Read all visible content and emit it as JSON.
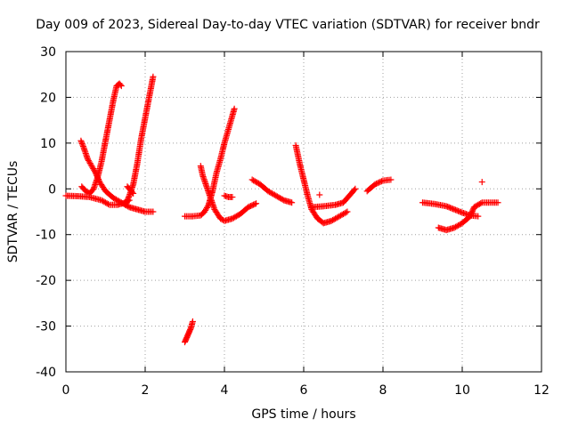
{
  "chart_data": {
    "type": "scatter",
    "title": "Day 009 of 2023, Sidereal Day-to-day VTEC variation (SDTVAR) for receiver bndr",
    "xlabel": "GPS time / hours",
    "ylabel": "SDTVAR / TECUs",
    "xlim": [
      0,
      12
    ],
    "ylim": [
      -40,
      30
    ],
    "xticks": [
      0,
      2,
      4,
      6,
      8,
      10,
      12
    ],
    "yticks": [
      -40,
      -30,
      -20,
      -10,
      0,
      10,
      20,
      30
    ],
    "grid": true,
    "marker": "+",
    "marker_color": "#ff0000",
    "segments": [
      {
        "points": [
          [
            0.0,
            -1.5
          ],
          [
            0.3,
            -1.6
          ],
          [
            0.6,
            -1.8
          ],
          [
            0.9,
            -2.5
          ],
          [
            1.1,
            -3.5
          ],
          [
            1.3,
            -3.5
          ],
          [
            1.5,
            -3.0
          ],
          [
            1.6,
            -2.5
          ]
        ]
      },
      {
        "points": [
          [
            0.38,
            10.5
          ],
          [
            0.45,
            9.0
          ],
          [
            0.55,
            6.5
          ],
          [
            0.65,
            5.0
          ],
          [
            0.75,
            3.5
          ],
          [
            0.85,
            1.5
          ],
          [
            1.0,
            -0.5
          ],
          [
            1.2,
            -2.0
          ],
          [
            1.4,
            -3.0
          ],
          [
            1.6,
            -4.0
          ],
          [
            1.8,
            -4.5
          ],
          [
            2.0,
            -5.0
          ],
          [
            2.2,
            -5.0
          ]
        ]
      },
      {
        "points": [
          [
            0.4,
            0.5
          ],
          [
            0.5,
            -0.5
          ],
          [
            0.6,
            -1.0
          ],
          [
            0.7,
            0.0
          ],
          [
            0.8,
            2.5
          ],
          [
            0.9,
            6.0
          ],
          [
            1.0,
            10.5
          ],
          [
            1.1,
            15.0
          ],
          [
            1.2,
            19.5
          ],
          [
            1.28,
            22.5
          ],
          [
            1.35,
            23.0
          ],
          [
            1.4,
            22.5
          ]
        ]
      },
      {
        "points": [
          [
            1.5,
            -3.5
          ],
          [
            1.6,
            -1.5
          ],
          [
            1.7,
            1.0
          ],
          [
            1.8,
            5.5
          ],
          [
            1.9,
            11.0
          ],
          [
            2.0,
            15.5
          ],
          [
            2.1,
            20.0
          ],
          [
            2.2,
            24.5
          ]
        ]
      },
      {
        "points": [
          [
            1.55,
            0.5
          ],
          [
            1.7,
            -1.0
          ]
        ]
      },
      {
        "points": [
          [
            3.0,
            -6.0
          ],
          [
            3.2,
            -6.0
          ],
          [
            3.4,
            -5.8
          ],
          [
            3.5,
            -5.0
          ],
          [
            3.6,
            -3.5
          ],
          [
            3.65,
            -2.0
          ],
          [
            3.7,
            -0.5
          ],
          [
            3.75,
            1.5
          ],
          [
            3.8,
            3.5
          ],
          [
            3.9,
            6.5
          ],
          [
            4.0,
            10.0
          ],
          [
            4.1,
            13.0
          ],
          [
            4.2,
            16.0
          ],
          [
            4.25,
            17.5
          ]
        ]
      },
      {
        "points": [
          [
            3.4,
            5.0
          ],
          [
            3.45,
            3.0
          ],
          [
            3.55,
            0.5
          ],
          [
            3.65,
            -2.0
          ],
          [
            3.75,
            -4.5
          ],
          [
            3.9,
            -6.5
          ],
          [
            4.0,
            -7.0
          ],
          [
            4.2,
            -6.5
          ],
          [
            4.4,
            -5.5
          ],
          [
            4.6,
            -4.0
          ],
          [
            4.8,
            -3.2
          ]
        ]
      },
      {
        "points": [
          [
            4.0,
            -1.5
          ],
          [
            4.1,
            -1.8
          ],
          [
            4.2,
            -1.8
          ]
        ]
      },
      {
        "points": [
          [
            3.0,
            -33.5
          ],
          [
            3.05,
            -32.5
          ],
          [
            3.1,
            -31.5
          ],
          [
            3.15,
            -30.5
          ],
          [
            3.2,
            -29.0
          ]
        ]
      },
      {
        "points": [
          [
            4.7,
            2.0
          ],
          [
            4.9,
            1.0
          ],
          [
            5.1,
            -0.5
          ],
          [
            5.3,
            -1.5
          ],
          [
            5.5,
            -2.5
          ],
          [
            5.7,
            -3.0
          ]
        ]
      },
      {
        "points": [
          [
            5.8,
            9.5
          ],
          [
            5.9,
            5.5
          ],
          [
            6.0,
            2.0
          ],
          [
            6.1,
            -1.5
          ],
          [
            6.2,
            -4.5
          ],
          [
            6.35,
            -6.5
          ],
          [
            6.5,
            -7.5
          ],
          [
            6.7,
            -7.0
          ],
          [
            6.9,
            -6.0
          ],
          [
            7.1,
            -5.0
          ]
        ]
      },
      {
        "points": [
          [
            6.2,
            -4.0
          ],
          [
            6.5,
            -3.8
          ],
          [
            6.8,
            -3.5
          ],
          [
            7.0,
            -3.0
          ],
          [
            7.1,
            -2.0
          ],
          [
            7.2,
            -1.0
          ],
          [
            7.3,
            0.0
          ]
        ]
      },
      {
        "points": [
          [
            6.4,
            -1.3
          ]
        ]
      },
      {
        "points": [
          [
            7.6,
            -0.5
          ],
          [
            7.8,
            1.0
          ],
          [
            8.0,
            1.8
          ],
          [
            8.2,
            2.0
          ]
        ]
      },
      {
        "points": [
          [
            9.0,
            -3.0
          ],
          [
            9.3,
            -3.3
          ],
          [
            9.6,
            -3.8
          ],
          [
            9.8,
            -4.5
          ],
          [
            10.0,
            -5.2
          ],
          [
            10.2,
            -5.8
          ],
          [
            10.4,
            -6.0
          ]
        ]
      },
      {
        "points": [
          [
            9.4,
            -8.5
          ],
          [
            9.6,
            -9.0
          ],
          [
            9.8,
            -8.5
          ],
          [
            10.0,
            -7.5
          ],
          [
            10.2,
            -6.0
          ],
          [
            10.3,
            -4.0
          ],
          [
            10.5,
            -3.0
          ],
          [
            10.7,
            -3.0
          ],
          [
            10.9,
            -3.0
          ]
        ]
      },
      {
        "points": [
          [
            10.5,
            1.5
          ]
        ]
      }
    ]
  }
}
